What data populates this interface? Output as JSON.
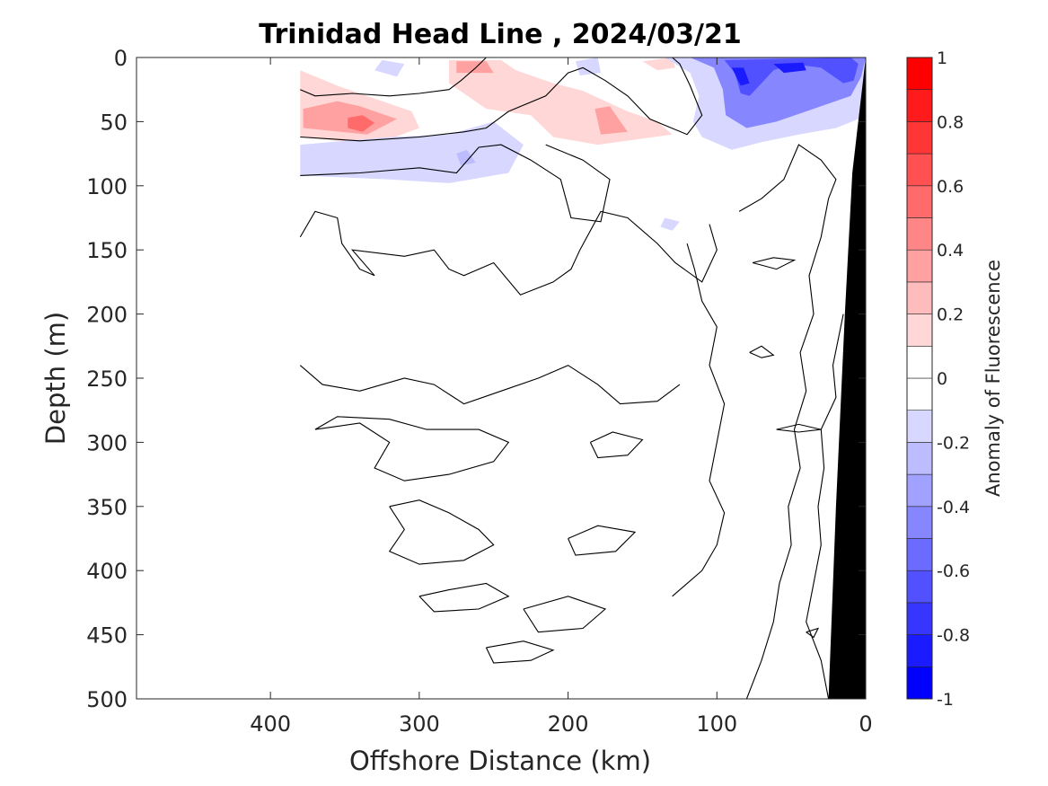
{
  "chart_data": {
    "type": "heatmap",
    "title": "Trinidad Head Line , 2024/03/21",
    "xlabel": "Offshore Distance (km)",
    "ylabel": "Depth (m)",
    "xlim": [
      490,
      0
    ],
    "ylim": [
      0,
      500
    ],
    "x_reversed": true,
    "y_reversed": true,
    "xticks": [
      400,
      300,
      200,
      100,
      0
    ],
    "yticks": [
      0,
      50,
      100,
      150,
      200,
      250,
      300,
      350,
      400,
      450,
      500
    ],
    "colorbar": {
      "label": "Anomaly of Fluorescence",
      "range": [
        -1,
        1
      ],
      "levels": 20,
      "ticks": [
        -1,
        -0.8,
        -0.6,
        -0.4,
        -0.2,
        0,
        0.2,
        0.4,
        0.6,
        0.8,
        1
      ],
      "colormap": "blue-white-red",
      "colors": {
        "negative": "#0000ff",
        "zero": "#ffffff",
        "positive": "#ff0000"
      }
    },
    "data_extent_km": [
      0,
      380
    ],
    "seafloor_color": "#000000",
    "seafloor": [
      [
        0,
        0
      ],
      [
        5,
        50
      ],
      [
        9,
        90
      ],
      [
        14,
        200
      ],
      [
        20,
        350
      ],
      [
        25,
        500
      ]
    ],
    "anomaly_patches": [
      {
        "value": 0.15,
        "points": [
          [
            380,
            10
          ],
          [
            355,
            22
          ],
          [
            340,
            28
          ],
          [
            305,
            42
          ],
          [
            300,
            55
          ],
          [
            330,
            68
          ],
          [
            380,
            62
          ]
        ]
      },
      {
        "value": 0.35,
        "points": [
          [
            378,
            40
          ],
          [
            355,
            34
          ],
          [
            340,
            38
          ],
          [
            315,
            48
          ],
          [
            335,
            60
          ],
          [
            378,
            55
          ]
        ]
      },
      {
        "value": 0.5,
        "points": [
          [
            348,
            47
          ],
          [
            338,
            45
          ],
          [
            330,
            51
          ],
          [
            338,
            58
          ],
          [
            348,
            55
          ]
        ]
      },
      {
        "value": 0.15,
        "points": [
          [
            280,
            2
          ],
          [
            245,
            2
          ],
          [
            235,
            10
          ],
          [
            210,
            20
          ],
          [
            190,
            26
          ],
          [
            160,
            42
          ],
          [
            140,
            50
          ],
          [
            130,
            60
          ],
          [
            180,
            68
          ],
          [
            210,
            62
          ],
          [
            225,
            45
          ],
          [
            255,
            40
          ],
          [
            280,
            20
          ]
        ]
      },
      {
        "value": 0.3,
        "points": [
          [
            275,
            3
          ],
          [
            255,
            3
          ],
          [
            250,
            12
          ],
          [
            275,
            12
          ]
        ]
      },
      {
        "value": 0.3,
        "points": [
          [
            182,
            40
          ],
          [
            172,
            38
          ],
          [
            160,
            58
          ],
          [
            178,
            60
          ]
        ]
      },
      {
        "value": 0.05,
        "points": [
          [
            380,
            0
          ],
          [
            355,
            0
          ],
          [
            350,
            6
          ],
          [
            370,
            8
          ]
        ]
      },
      {
        "value": 0.1,
        "points": [
          [
            150,
            3
          ],
          [
            130,
            0
          ],
          [
            128,
            8
          ],
          [
            140,
            10
          ]
        ]
      },
      {
        "value": -0.15,
        "points": [
          [
            380,
            68
          ],
          [
            320,
            62
          ],
          [
            280,
            60
          ],
          [
            250,
            50
          ],
          [
            230,
            68
          ],
          [
            240,
            90
          ],
          [
            280,
            98
          ],
          [
            320,
            95
          ],
          [
            380,
            92
          ]
        ]
      },
      {
        "value": -0.25,
        "points": [
          [
            275,
            75
          ],
          [
            268,
            72
          ],
          [
            262,
            82
          ],
          [
            272,
            84
          ]
        ]
      },
      {
        "value": -0.15,
        "points": [
          [
            325,
            2
          ],
          [
            310,
            5
          ],
          [
            315,
            15
          ],
          [
            330,
            10
          ]
        ]
      },
      {
        "value": -0.15,
        "points": [
          [
            195,
            3
          ],
          [
            180,
            0
          ],
          [
            178,
            12
          ],
          [
            192,
            14
          ]
        ]
      },
      {
        "value": -0.15,
        "points": [
          [
            135,
            125
          ],
          [
            125,
            128
          ],
          [
            130,
            135
          ],
          [
            138,
            132
          ]
        ]
      },
      {
        "value": -0.2,
        "points": [
          [
            135,
            0
          ],
          [
            118,
            12
          ],
          [
            112,
            30
          ],
          [
            116,
            50
          ],
          [
            110,
            62
          ],
          [
            90,
            72
          ],
          [
            70,
            66
          ],
          [
            45,
            60
          ],
          [
            20,
            55
          ],
          [
            5,
            48
          ],
          [
            0,
            30
          ],
          [
            0,
            0
          ]
        ]
      },
      {
        "value": -0.45,
        "points": [
          [
            118,
            0
          ],
          [
            102,
            8
          ],
          [
            96,
            25
          ],
          [
            94,
            45
          ],
          [
            80,
            55
          ],
          [
            60,
            50
          ],
          [
            35,
            40
          ],
          [
            10,
            30
          ],
          [
            3,
            15
          ],
          [
            0,
            0
          ]
        ]
      },
      {
        "value": -0.7,
        "points": [
          [
            95,
            2
          ],
          [
            88,
            12
          ],
          [
            84,
            28
          ],
          [
            78,
            30
          ],
          [
            70,
            20
          ],
          [
            62,
            10
          ],
          [
            50,
            5
          ],
          [
            30,
            8
          ],
          [
            15,
            20
          ],
          [
            8,
            18
          ],
          [
            5,
            5
          ],
          [
            10,
            0
          ]
        ]
      },
      {
        "value": -0.85,
        "points": [
          [
            62,
            5
          ],
          [
            55,
            12
          ],
          [
            40,
            10
          ],
          [
            42,
            4
          ]
        ]
      },
      {
        "value": -0.85,
        "points": [
          [
            90,
            8
          ],
          [
            84,
            22
          ],
          [
            78,
            20
          ],
          [
            82,
            8
          ]
        ]
      }
    ]
  }
}
